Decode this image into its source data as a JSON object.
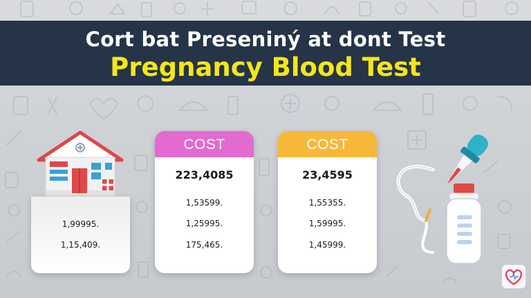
{
  "header": {
    "title_line1": "Cort bat Preseniný at dont Test",
    "title_line2": "Pregnancy Blood Test"
  },
  "cards": {
    "home": {
      "values": [
        "1,99995.",
        "1,15,409."
      ]
    },
    "clinic": {
      "label": "COST",
      "main_value": "223,4085",
      "values": [
        "1,53599.",
        "1,25995.",
        "175,465."
      ]
    },
    "lab": {
      "label": "COST",
      "main_value": "23,4595",
      "values": [
        "1,55355.",
        "1,59995.",
        "1,45999."
      ]
    }
  },
  "colors": {
    "banner": "#253447",
    "title_accent": "#f5e61a",
    "clinic_header": "#e36ad0",
    "lab_header": "#f7b739"
  },
  "icons": {
    "home": "house-icon",
    "kit": "blood-test-kit-icon",
    "brand": "heart-logo-icon"
  }
}
